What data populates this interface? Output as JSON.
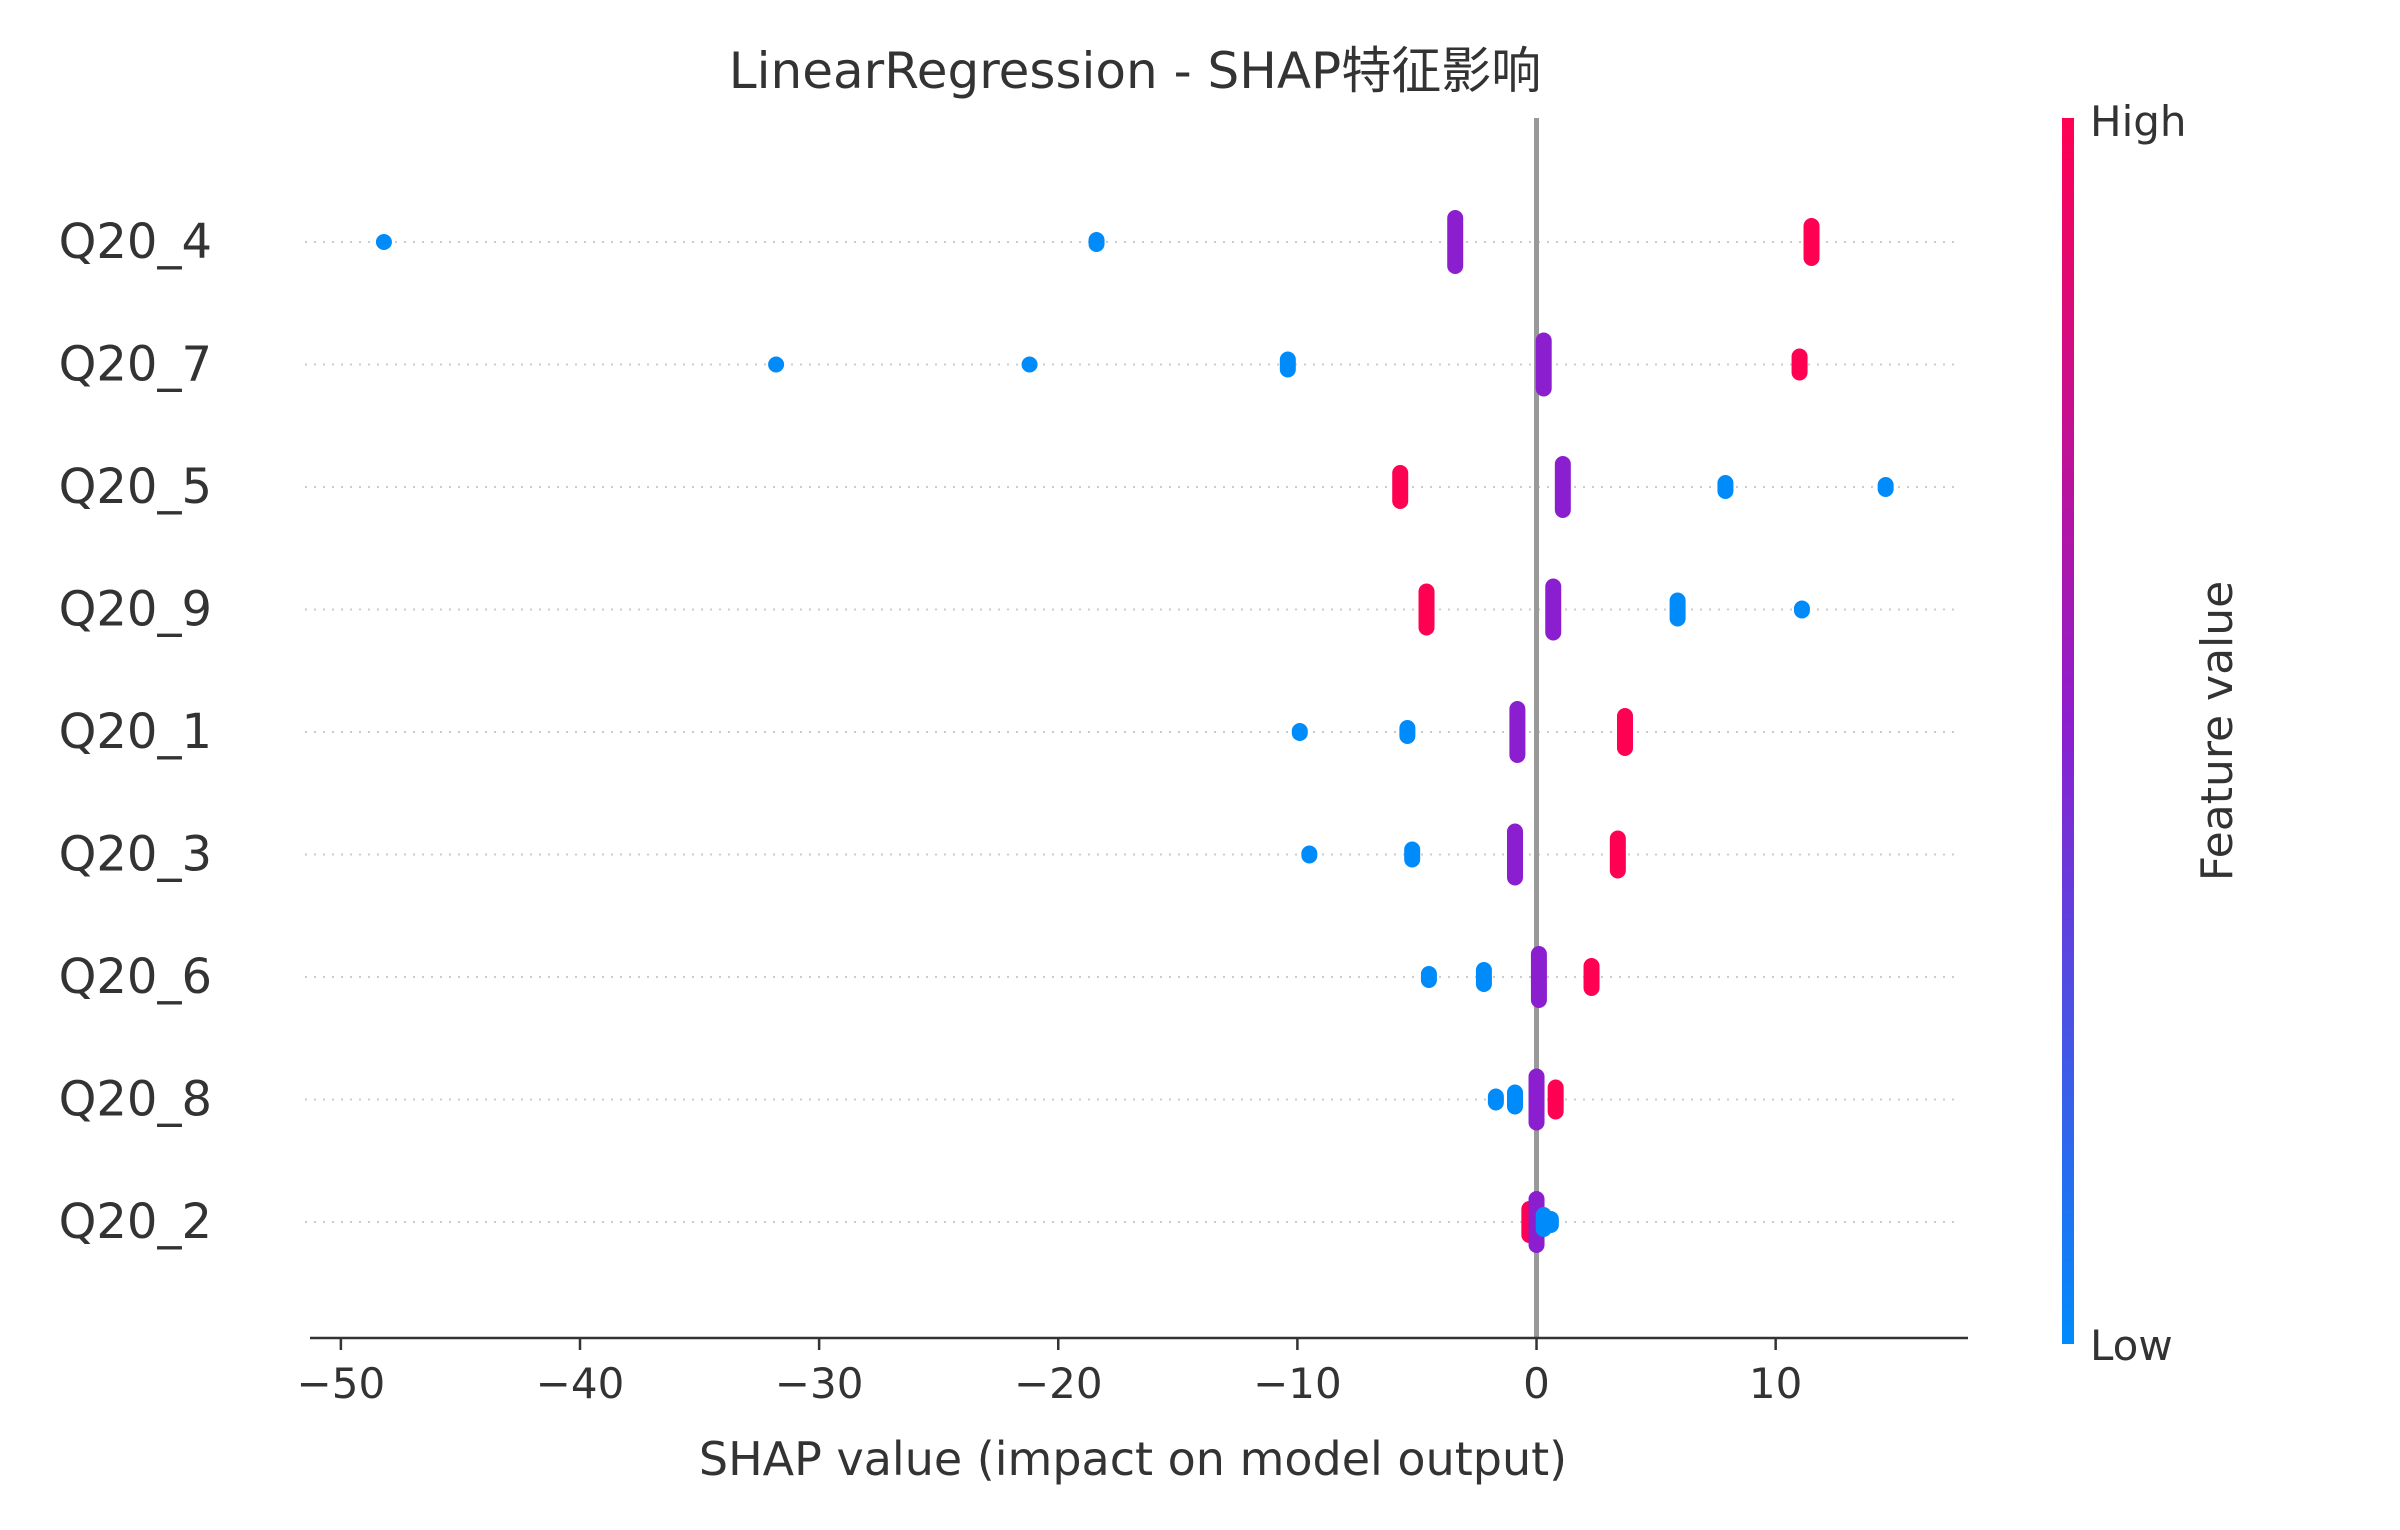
{
  "chart_data": {
    "type": "scatter",
    "subtype": "shap-beeswarm",
    "title": "LinearRegression - SHAP特征影响",
    "xlabel": "SHAP value (impact on model output)",
    "xlim": [
      -51.5,
      17.5
    ],
    "xticks": [
      -50,
      -40,
      -30,
      -20,
      -10,
      0,
      10
    ],
    "xtick_labels": [
      "−50",
      "−40",
      "−30",
      "−20",
      "−10",
      "0",
      "10"
    ],
    "grid": "dotted horizontal per feature",
    "zero_line": true,
    "colorbar": {
      "label": "Feature value",
      "high_label": "High",
      "low_label": "Low",
      "colors": [
        "#008bfb",
        "#8b1fd0",
        "#ff0052"
      ]
    },
    "features": [
      {
        "name": "Q20_4",
        "points": [
          {
            "x": -48.2,
            "c": 0.0,
            "n": 1
          },
          {
            "x": -18.4,
            "c": 0.0,
            "n": 3
          },
          {
            "x": -3.4,
            "c": 0.5,
            "n": 25
          },
          {
            "x": 11.5,
            "c": 1.0,
            "n": 17
          }
        ]
      },
      {
        "name": "Q20_7",
        "points": [
          {
            "x": -31.8,
            "c": 0.0,
            "n": 1
          },
          {
            "x": -21.2,
            "c": 0.0,
            "n": 1
          },
          {
            "x": -10.4,
            "c": 0.0,
            "n": 6
          },
          {
            "x": 0.3,
            "c": 0.5,
            "n": 25
          },
          {
            "x": 11.0,
            "c": 1.0,
            "n": 9
          }
        ]
      },
      {
        "name": "Q20_5",
        "points": [
          {
            "x": -5.7,
            "c": 1.0,
            "n": 15
          },
          {
            "x": 1.1,
            "c": 0.5,
            "n": 24
          },
          {
            "x": 7.9,
            "c": 0.0,
            "n": 5
          },
          {
            "x": 14.6,
            "c": 0.0,
            "n": 3
          }
        ]
      },
      {
        "name": "Q20_9",
        "points": [
          {
            "x": -4.6,
            "c": 1.0,
            "n": 19
          },
          {
            "x": 0.7,
            "c": 0.5,
            "n": 24
          },
          {
            "x": 5.9,
            "c": 0.0,
            "n": 10
          },
          {
            "x": 11.1,
            "c": 0.0,
            "n": 2
          }
        ]
      },
      {
        "name": "Q20_1",
        "points": [
          {
            "x": -9.9,
            "c": 0.0,
            "n": 2
          },
          {
            "x": -5.4,
            "c": 0.0,
            "n": 5
          },
          {
            "x": -0.8,
            "c": 0.5,
            "n": 24
          },
          {
            "x": 3.7,
            "c": 1.0,
            "n": 17
          }
        ]
      },
      {
        "name": "Q20_3",
        "points": [
          {
            "x": -9.5,
            "c": 0.0,
            "n": 2
          },
          {
            "x": -5.2,
            "c": 0.0,
            "n": 6
          },
          {
            "x": -0.9,
            "c": 0.5,
            "n": 24
          },
          {
            "x": 3.4,
            "c": 1.0,
            "n": 17
          }
        ]
      },
      {
        "name": "Q20_6",
        "points": [
          {
            "x": -4.5,
            "c": 0.0,
            "n": 4
          },
          {
            "x": -2.2,
            "c": 0.0,
            "n": 8
          },
          {
            "x": 0.1,
            "c": 0.5,
            "n": 24
          },
          {
            "x": 2.3,
            "c": 1.0,
            "n": 12
          }
        ]
      },
      {
        "name": "Q20_8",
        "points": [
          {
            "x": -1.7,
            "c": 0.0,
            "n": 4
          },
          {
            "x": -0.9,
            "c": 0.0,
            "n": 8
          },
          {
            "x": 0.0,
            "c": 0.5,
            "n": 24
          },
          {
            "x": 0.8,
            "c": 1.0,
            "n": 13
          }
        ]
      },
      {
        "name": "Q20_2",
        "points": [
          {
            "x": -0.3,
            "c": 1.0,
            "n": 14
          },
          {
            "x": 0.0,
            "c": 0.5,
            "n": 24
          },
          {
            "x": 0.3,
            "c": 0.0,
            "n": 8
          },
          {
            "x": 0.6,
            "c": 0.0,
            "n": 4
          }
        ]
      }
    ]
  }
}
